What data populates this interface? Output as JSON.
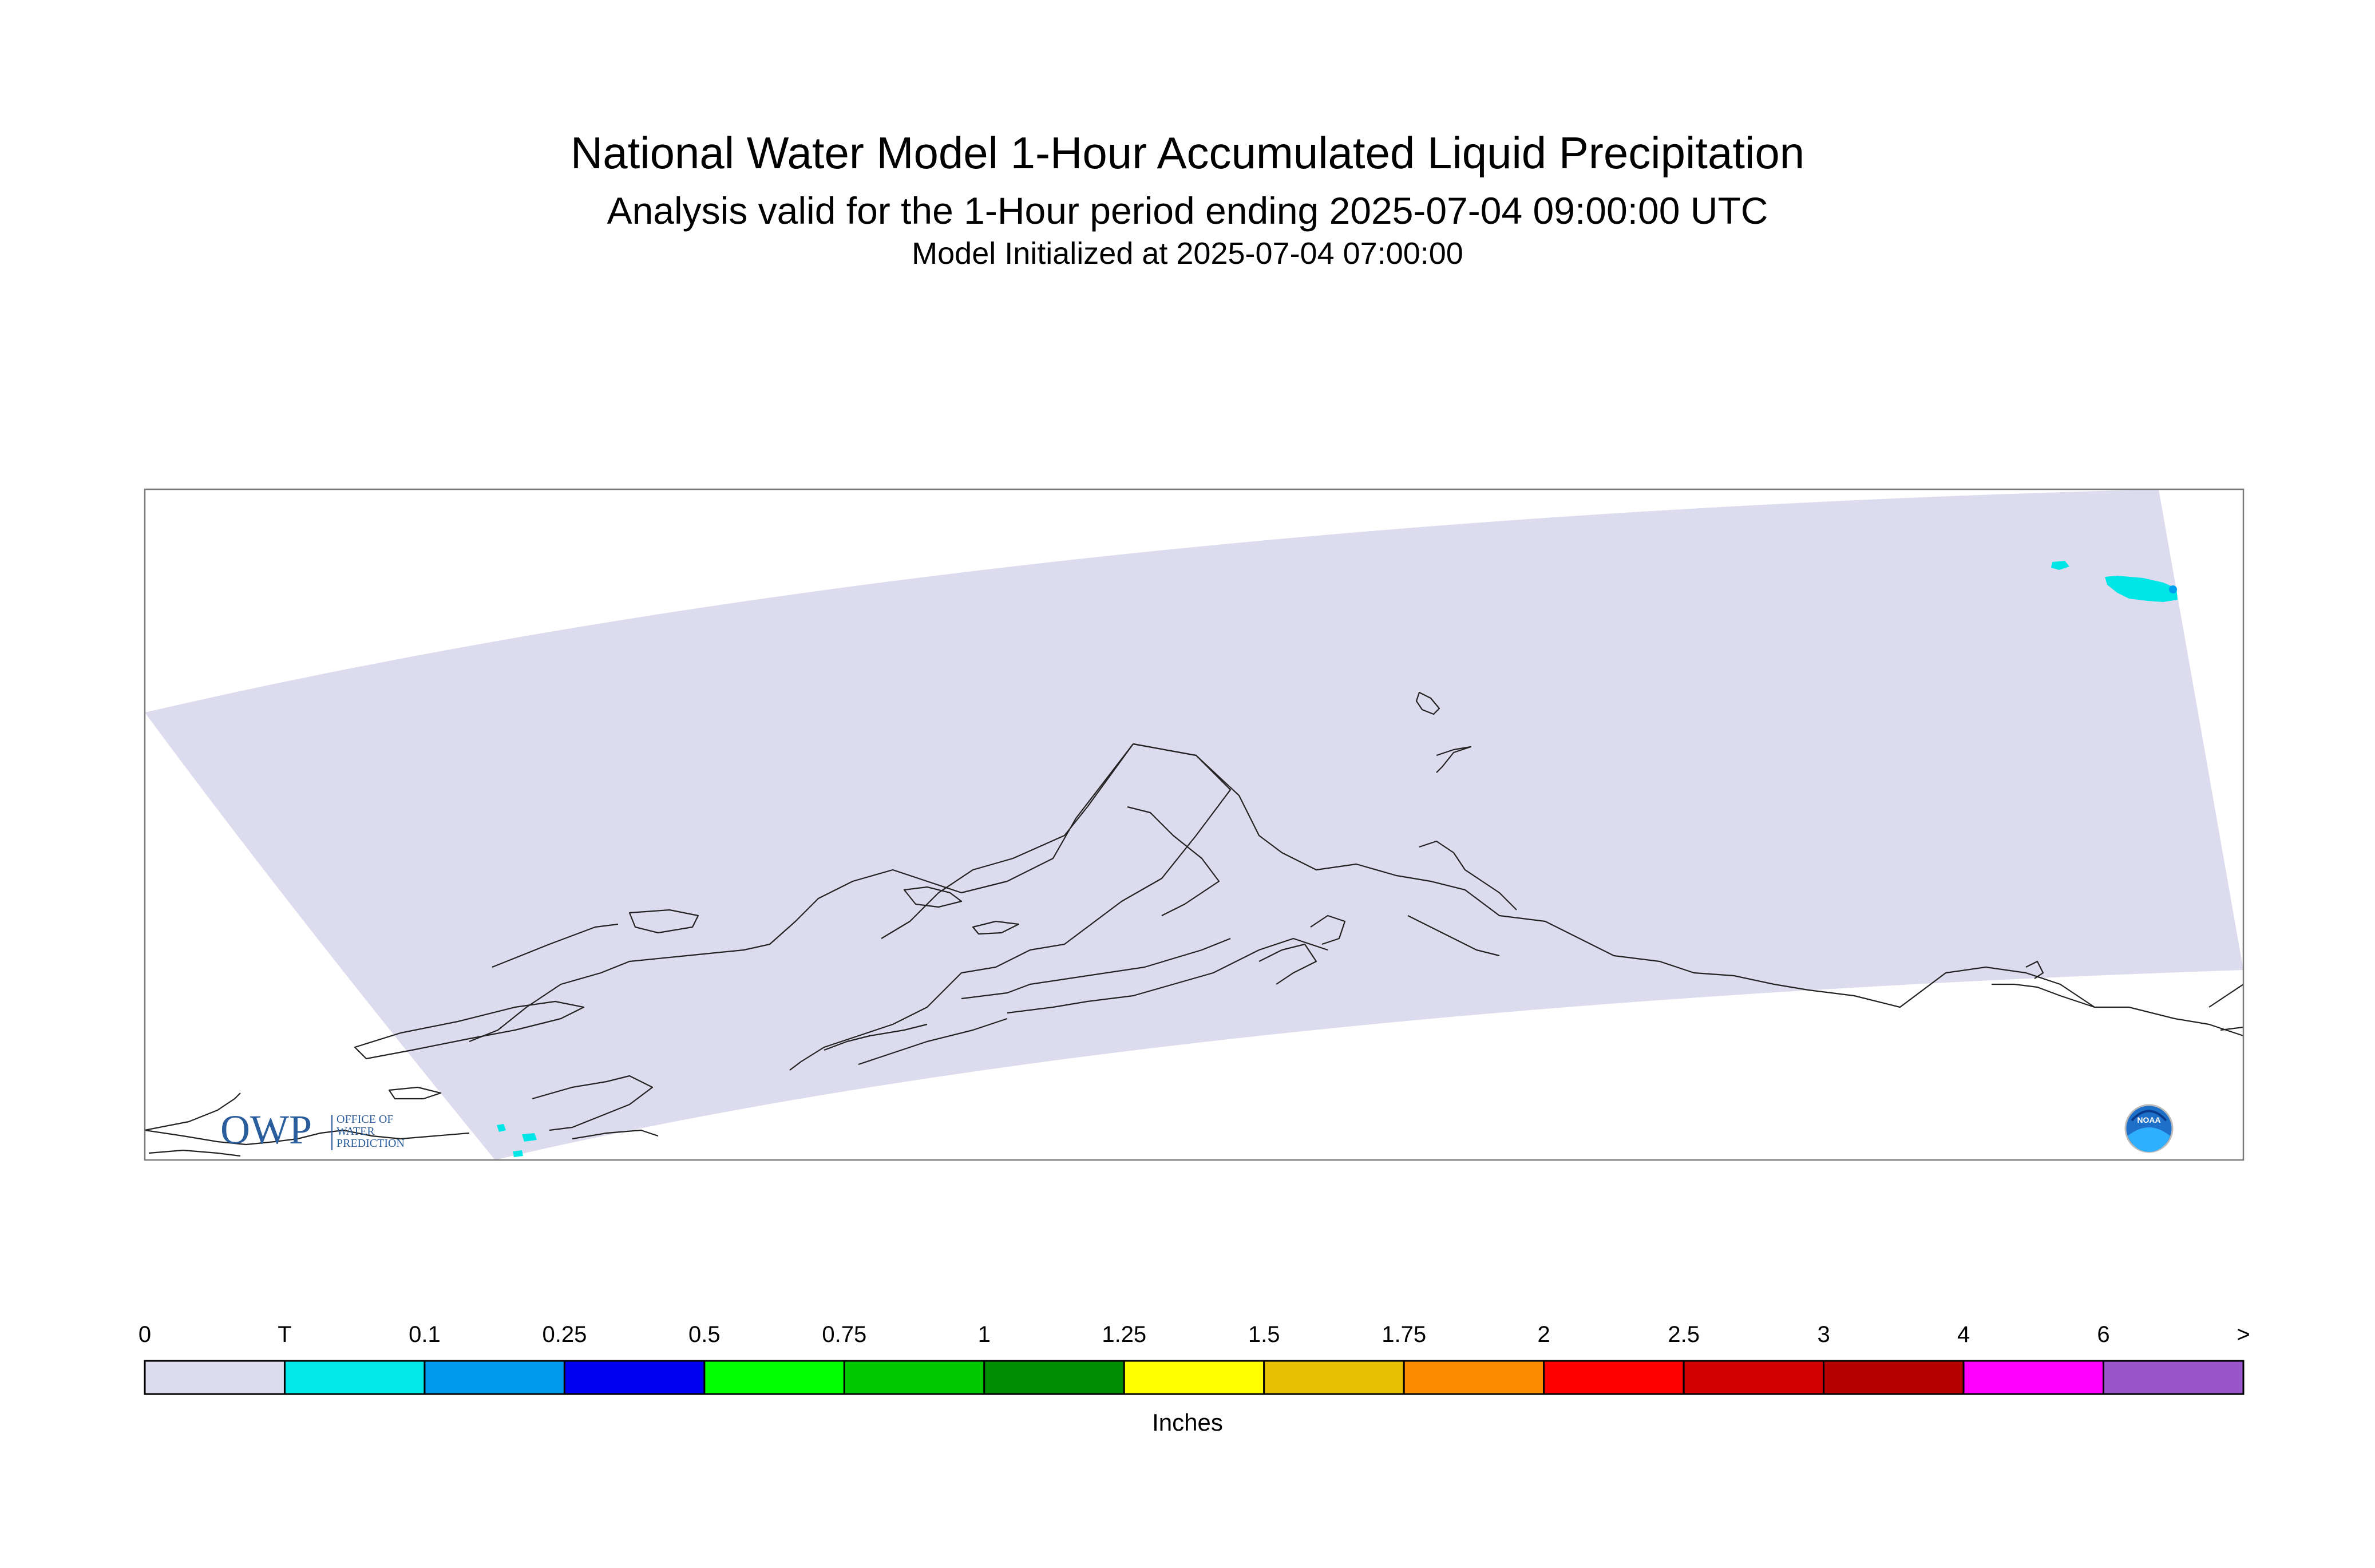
{
  "title": "National Water Model 1-Hour Accumulated Liquid Precipitation",
  "subtitle": "Analysis valid for the 1-Hour period ending 2025-07-04 09:00:00 UTC",
  "init_line": "Model Initialized at 2025-07-04 07:00:00",
  "logos": {
    "owp_mark": "OWP",
    "owp_text": [
      "OFFICE OF",
      "WATER",
      "PREDICTION"
    ],
    "noaa_text": "NOAA"
  },
  "colors": {
    "domain_fill": "#dcdcee",
    "coastline": "#222222",
    "trace_precip": "#00e5e5",
    "light_precip": "#00a0f0"
  },
  "legend": {
    "units": "Inches",
    "tick_labels": [
      "0",
      "T",
      "0.1",
      "0.25",
      "0.5",
      "0.75",
      "1",
      "1.25",
      "1.5",
      "1.75",
      "2",
      "2.5",
      "3",
      "4",
      "6",
      ">"
    ],
    "bin_colors": [
      "#dcdcee",
      "#00e8e8",
      "#0099f0",
      "#0000f2",
      "#00ff00",
      "#00c800",
      "#008c00",
      "#ffff00",
      "#e6c000",
      "#ff8c00",
      "#ff0000",
      "#d20000",
      "#b40000",
      "#ff00ff",
      "#9955cc"
    ]
  }
}
